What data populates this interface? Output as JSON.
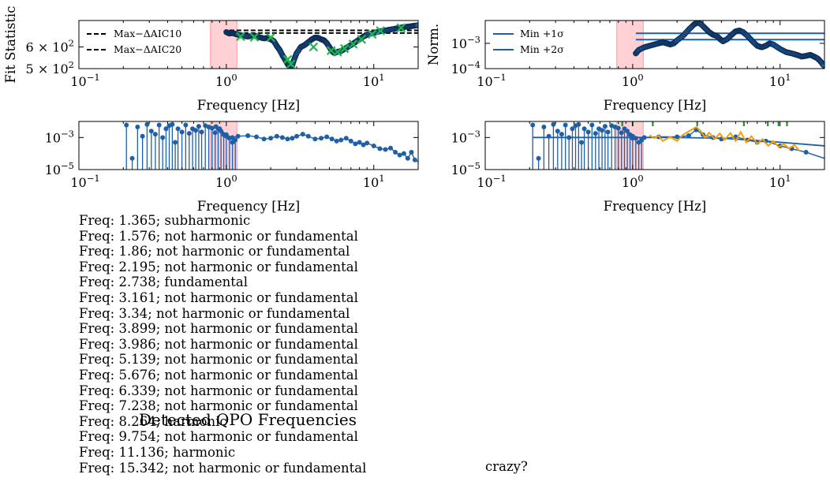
{
  "colors": {
    "points": "#1f5fa6",
    "points_edge": "#0f2d55",
    "green": "#1db84a",
    "orange": "#f5a000",
    "span": "#ff9aa2",
    "tick_green": "#0a8a1a",
    "black": "#000000"
  },
  "chart_data": [
    {
      "id": "fit-statistic",
      "type": "scatter",
      "ylabel": "Fit Statistic",
      "xlabel": "Frequency [Hz]",
      "xscale": "log",
      "xlim": [
        0.1,
        20
      ],
      "ylim": [
        500,
        750
      ],
      "yscale": "log",
      "yticks": [
        {
          "value": 500,
          "mant": "5 × 10",
          "exp": "2"
        },
        {
          "value": 600,
          "mant": "6 × 10",
          "exp": "2"
        }
      ],
      "xticks": [
        {
          "value": 0.1,
          "mant": "10",
          "exp": "−1"
        },
        {
          "value": 1,
          "mant": "10",
          "exp": "0"
        },
        {
          "value": 10,
          "mant": "10",
          "exp": "1"
        }
      ],
      "shaded_span": [
        0.78,
        1.18
      ],
      "legend": [
        {
          "label": "Max−ΔAIC10"
        },
        {
          "label": "Max−ΔAIC20"
        }
      ],
      "hlines": [
        {
          "y": 690,
          "x0": 1.05,
          "x1": 20
        },
        {
          "y": 675,
          "x0": 1.05,
          "x1": 20
        }
      ],
      "curve": [
        [
          1.0,
          680
        ],
        [
          1.05,
          672
        ],
        [
          1.1,
          675
        ],
        [
          1.15,
          670
        ],
        [
          1.2,
          665
        ],
        [
          1.3,
          660
        ],
        [
          1.4,
          655
        ],
        [
          1.5,
          660
        ],
        [
          1.6,
          658
        ],
        [
          1.7,
          650
        ],
        [
          1.8,
          645
        ],
        [
          1.9,
          648
        ],
        [
          2.0,
          640
        ],
        [
          2.1,
          630
        ],
        [
          2.2,
          605
        ],
        [
          2.3,
          585
        ],
        [
          2.4,
          560
        ],
        [
          2.5,
          540
        ],
        [
          2.6,
          520
        ],
        [
          2.7,
          505
        ],
        [
          2.8,
          515
        ],
        [
          2.9,
          545
        ],
        [
          3.0,
          570
        ],
        [
          3.2,
          600
        ],
        [
          3.4,
          610
        ],
        [
          3.6,
          625
        ],
        [
          3.8,
          640
        ],
        [
          4.0,
          650
        ],
        [
          4.2,
          648
        ],
        [
          4.4,
          640
        ],
        [
          4.6,
          635
        ],
        [
          4.8,
          620
        ],
        [
          5.0,
          600
        ],
        [
          5.2,
          580
        ],
        [
          5.4,
          570
        ],
        [
          5.6,
          575
        ],
        [
          6.0,
          580
        ],
        [
          6.5,
          595
        ],
        [
          7.0,
          610
        ],
        [
          7.5,
          625
        ],
        [
          8.0,
          640
        ],
        [
          8.5,
          655
        ],
        [
          9.0,
          665
        ],
        [
          10,
          675
        ],
        [
          11,
          685
        ],
        [
          12,
          690
        ],
        [
          13,
          695
        ],
        [
          14,
          700
        ],
        [
          15,
          705
        ],
        [
          16,
          710
        ],
        [
          17,
          712
        ],
        [
          18,
          715
        ],
        [
          19,
          718
        ],
        [
          20,
          720
        ]
      ],
      "x_markers": [
        [
          1.25,
          655
        ],
        [
          1.55,
          652
        ],
        [
          2.0,
          650
        ],
        [
          2.6,
          540
        ],
        [
          2.74,
          520
        ],
        [
          3.9,
          600
        ],
        [
          5.14,
          582
        ],
        [
          5.68,
          575
        ],
        [
          6.34,
          592
        ],
        [
          7.24,
          615
        ],
        [
          8.26,
          640
        ],
        [
          9.75,
          668
        ],
        [
          11.1,
          688
        ],
        [
          15.3,
          705
        ]
      ]
    },
    {
      "id": "normalized",
      "type": "scatter",
      "ylabel": "Norm.",
      "xlabel": "Frequency [Hz]",
      "xscale": "log",
      "xlim": [
        0.1,
        20
      ],
      "yscale": "log",
      "ylim": [
        0.0001,
        0.008
      ],
      "yticks": [
        {
          "value": 0.0001,
          "mant": "10",
          "exp": "−4"
        },
        {
          "value": 0.001,
          "mant": "10",
          "exp": "−3"
        }
      ],
      "xticks": [
        {
          "value": 0.1,
          "mant": "10",
          "exp": "−1"
        },
        {
          "value": 1,
          "mant": "10",
          "exp": "0"
        },
        {
          "value": 10,
          "mant": "10",
          "exp": "1"
        }
      ],
      "shaded_span": [
        0.78,
        1.18
      ],
      "legend": [
        {
          "label": "Min +1σ"
        },
        {
          "label": "Min +2σ"
        }
      ],
      "hlines": [
        {
          "y": 0.0025,
          "x0": 1.05,
          "x1": 20
        },
        {
          "y": 0.0014,
          "x0": 1.05,
          "x1": 20
        }
      ],
      "curve": [
        [
          1.05,
          0.0004
        ],
        [
          1.1,
          0.00055
        ],
        [
          1.2,
          0.0007
        ],
        [
          1.3,
          0.0008
        ],
        [
          1.4,
          0.0009
        ],
        [
          1.5,
          0.001
        ],
        [
          1.6,
          0.0011
        ],
        [
          1.7,
          0.001
        ],
        [
          1.8,
          0.0009
        ],
        [
          1.9,
          0.001
        ],
        [
          2.0,
          0.0013
        ],
        [
          2.2,
          0.002
        ],
        [
          2.4,
          0.0035
        ],
        [
          2.6,
          0.0055
        ],
        [
          2.75,
          0.0068
        ],
        [
          2.9,
          0.0058
        ],
        [
          3.1,
          0.004
        ],
        [
          3.3,
          0.0028
        ],
        [
          3.5,
          0.0022
        ],
        [
          3.7,
          0.002
        ],
        [
          3.9,
          0.0015
        ],
        [
          4.1,
          0.0012
        ],
        [
          4.4,
          0.0015
        ],
        [
          4.7,
          0.0022
        ],
        [
          5.0,
          0.003
        ],
        [
          5.3,
          0.0032
        ],
        [
          5.6,
          0.0028
        ],
        [
          6.0,
          0.002
        ],
        [
          6.5,
          0.0012
        ],
        [
          7.0,
          0.0008
        ],
        [
          7.5,
          0.0007
        ],
        [
          8.0,
          0.0008
        ],
        [
          8.5,
          0.001
        ],
        [
          9.0,
          0.0009
        ],
        [
          10,
          0.0006
        ],
        [
          11,
          0.00045
        ],
        [
          12,
          0.0004
        ],
        [
          13,
          0.00035
        ],
        [
          14,
          0.0003
        ],
        [
          15,
          0.00032
        ],
        [
          16,
          0.00035
        ],
        [
          17,
          0.0003
        ],
        [
          18,
          0.00025
        ],
        [
          19,
          0.00018
        ],
        [
          20,
          0.00012
        ]
      ]
    },
    {
      "id": "power-left",
      "type": "line",
      "xlabel": "Frequency [Hz]",
      "xscale": "log",
      "xlim": [
        0.1,
        20
      ],
      "yscale": "log",
      "ylim": [
        1e-05,
        0.01
      ],
      "yticks": [
        {
          "value": 1e-05,
          "mant": "10",
          "exp": "−5"
        },
        {
          "value": 0.001,
          "mant": "10",
          "exp": "−3"
        }
      ],
      "xticks": [
        {
          "value": 0.1,
          "mant": "10",
          "exp": "−1"
        },
        {
          "value": 1,
          "mant": "10",
          "exp": "0"
        },
        {
          "value": 10,
          "mant": "10",
          "exp": "1"
        }
      ],
      "shaded_span": [
        0.78,
        1.18
      ],
      "stems": [
        [
          0.21,
          0.006
        ],
        [
          0.23,
          5e-05
        ],
        [
          0.25,
          0.0045
        ],
        [
          0.27,
          0.0012
        ],
        [
          0.29,
          0.0065
        ],
        [
          0.31,
          0.0025
        ],
        [
          0.33,
          0.0016
        ],
        [
          0.35,
          0.006
        ],
        [
          0.37,
          0.001
        ],
        [
          0.39,
          0.0035
        ],
        [
          0.41,
          0.0055
        ],
        [
          0.43,
          0.0065
        ],
        [
          0.45,
          0.0005
        ],
        [
          0.47,
          0.0035
        ],
        [
          0.5,
          0.0022
        ],
        [
          0.53,
          0.006
        ],
        [
          0.56,
          0.0018
        ],
        [
          0.59,
          0.0035
        ],
        [
          0.62,
          0.0028
        ],
        [
          0.65,
          0.005
        ],
        [
          0.68,
          0.0022
        ],
        [
          0.72,
          0.0055
        ],
        [
          0.76,
          0.0045
        ],
        [
          0.8,
          0.0038
        ],
        [
          0.84,
          0.002
        ],
        [
          0.88,
          0.0035
        ],
        [
          0.92,
          0.0025
        ],
        [
          0.96,
          0.0015
        ],
        [
          1.0,
          0.0012
        ],
        [
          1.05,
          0.0009
        ],
        [
          1.1,
          0.0005
        ],
        [
          1.15,
          0.0007
        ]
      ],
      "curve": [
        [
          0.85,
          0.0048
        ],
        [
          0.9,
          0.0035
        ],
        [
          1.0,
          0.0015
        ],
        [
          1.1,
          0.001
        ],
        [
          1.2,
          0.0012
        ],
        [
          1.4,
          0.0013
        ],
        [
          1.6,
          0.0011
        ],
        [
          1.8,
          0.0008
        ],
        [
          2.0,
          0.0009
        ],
        [
          2.2,
          0.0012
        ],
        [
          2.4,
          0.001
        ],
        [
          2.6,
          0.0008
        ],
        [
          2.8,
          0.0009
        ],
        [
          3.0,
          0.0012
        ],
        [
          3.3,
          0.0016
        ],
        [
          3.6,
          0.0012
        ],
        [
          4.0,
          0.0008
        ],
        [
          4.4,
          0.0009
        ],
        [
          4.8,
          0.0011
        ],
        [
          5.2,
          0.0008
        ],
        [
          5.6,
          0.0006
        ],
        [
          6.0,
          0.0007
        ],
        [
          6.5,
          0.0009
        ],
        [
          7.0,
          0.0006
        ],
        [
          7.5,
          0.0004
        ],
        [
          8.0,
          0.0005
        ],
        [
          8.5,
          0.00035
        ],
        [
          9.0,
          0.00045
        ],
        [
          10,
          0.0003
        ],
        [
          11,
          0.0002
        ],
        [
          12,
          0.00018
        ],
        [
          13,
          0.00022
        ],
        [
          14,
          0.00012
        ],
        [
          15,
          8e-05
        ],
        [
          16,
          0.0001
        ],
        [
          17,
          5e-05
        ],
        [
          18,
          0.00012
        ],
        [
          19,
          4e-05
        ],
        [
          20,
          3e-05
        ]
      ]
    },
    {
      "id": "power-right",
      "type": "line",
      "xlabel": "Frequency [Hz]",
      "xscale": "log",
      "xlim": [
        0.1,
        20
      ],
      "yscale": "log",
      "ylim": [
        1e-05,
        0.01
      ],
      "yticks": [
        {
          "value": 1e-05,
          "mant": "10",
          "exp": "−5"
        },
        {
          "value": 0.001,
          "mant": "10",
          "exp": "−3"
        }
      ],
      "xticks": [
        {
          "value": 0.1,
          "mant": "10",
          "exp": "−1"
        },
        {
          "value": 1,
          "mant": "10",
          "exp": "0"
        },
        {
          "value": 10,
          "mant": "10",
          "exp": "1"
        }
      ],
      "shaded_span": [
        0.78,
        1.18
      ],
      "stems": [
        [
          0.21,
          0.006
        ],
        [
          0.23,
          5e-05
        ],
        [
          0.25,
          0.0045
        ],
        [
          0.27,
          0.0012
        ],
        [
          0.29,
          0.0065
        ],
        [
          0.31,
          0.0025
        ],
        [
          0.33,
          0.0016
        ],
        [
          0.35,
          0.006
        ],
        [
          0.37,
          0.001
        ],
        [
          0.39,
          0.0035
        ],
        [
          0.41,
          0.0055
        ],
        [
          0.43,
          0.0065
        ],
        [
          0.45,
          0.0005
        ],
        [
          0.47,
          0.0035
        ],
        [
          0.5,
          0.0022
        ],
        [
          0.53,
          0.006
        ],
        [
          0.56,
          0.0018
        ],
        [
          0.59,
          0.0035
        ],
        [
          0.62,
          0.0028
        ],
        [
          0.65,
          0.005
        ],
        [
          0.68,
          0.0022
        ],
        [
          0.72,
          0.0055
        ],
        [
          0.76,
          0.0045
        ],
        [
          0.8,
          0.0038
        ],
        [
          0.84,
          0.002
        ],
        [
          0.88,
          0.0035
        ],
        [
          0.92,
          0.0025
        ],
        [
          0.96,
          0.0015
        ],
        [
          1.0,
          0.0012
        ],
        [
          1.05,
          0.0009
        ],
        [
          1.1,
          0.0005
        ],
        [
          1.15,
          0.0007
        ]
      ],
      "baseline": [
        [
          0.21,
          0.001
        ],
        [
          1.0,
          0.001
        ],
        [
          2.0,
          0.001
        ],
        [
          4.0,
          0.0009
        ],
        [
          8.0,
          0.0006
        ],
        [
          20,
          0.0003
        ]
      ],
      "curve": [
        [
          1.0,
          0.0009
        ],
        [
          1.2,
          0.001
        ],
        [
          1.5,
          0.0011
        ],
        [
          2.0,
          0.0011
        ],
        [
          2.4,
          0.0013
        ],
        [
          2.7,
          0.003
        ],
        [
          3.0,
          0.0015
        ],
        [
          3.5,
          0.001
        ],
        [
          4.0,
          0.0008
        ],
        [
          5.0,
          0.0011
        ],
        [
          6.0,
          0.0007
        ],
        [
          7.0,
          0.0005
        ],
        [
          8.0,
          0.0006
        ],
        [
          10,
          0.0003
        ],
        [
          12,
          0.0002
        ],
        [
          15,
          0.00012
        ],
        [
          20,
          5e-05
        ]
      ],
      "orange": [
        [
          1.3,
          0.0014
        ],
        [
          1.4,
          0.0009
        ],
        [
          1.5,
          0.0013
        ],
        [
          1.6,
          0.0006
        ],
        [
          1.8,
          0.0011
        ],
        [
          2.0,
          0.0006
        ],
        [
          2.2,
          0.0015
        ],
        [
          2.5,
          0.003
        ],
        [
          2.7,
          0.0045
        ],
        [
          2.9,
          0.0025
        ],
        [
          3.1,
          0.001
        ],
        [
          3.3,
          0.002
        ],
        [
          3.6,
          0.0008
        ],
        [
          3.9,
          0.0018
        ],
        [
          4.2,
          0.0007
        ],
        [
          4.6,
          0.0019
        ],
        [
          5.0,
          0.0006
        ],
        [
          5.4,
          0.0022
        ],
        [
          5.9,
          0.0005
        ],
        [
          6.4,
          0.0012
        ],
        [
          7.0,
          0.0004
        ],
        [
          7.6,
          0.0008
        ],
        [
          8.3,
          0.0003
        ],
        [
          9.0,
          0.0006
        ],
        [
          9.8,
          0.00025
        ],
        [
          10.6,
          0.0004
        ],
        [
          11.5,
          0.0002
        ],
        [
          12.5,
          0.00035
        ],
        [
          13.5,
          0.00015
        ]
      ],
      "green_ticks": [
        0.85,
        1.0,
        1.37,
        2.74,
        5.68,
        8.26,
        9.75,
        11.14
      ]
    }
  ],
  "qpo": {
    "title": "Detected QPO Frequencies",
    "items": [
      "Freq: 1.365; subharmonic",
      "Freq: 1.576; not harmonic or fundamental",
      "Freq: 1.86; not harmonic or fundamental",
      "Freq: 2.195; not harmonic or fundamental",
      "Freq: 2.738; fundamental",
      "Freq: 3.161; not harmonic or fundamental",
      "Freq: 3.34; not harmonic or fundamental",
      "Freq: 3.899; not harmonic or fundamental",
      "Freq: 3.986; not harmonic or fundamental",
      "Freq: 5.139; not harmonic or fundamental",
      "Freq: 5.676; not harmonic or fundamental",
      "Freq: 6.339; not harmonic or fundamental",
      "Freq: 7.238; not harmonic or fundamental",
      "Freq: 8.264; harmonic",
      "Freq: 9.754; not harmonic or fundamental",
      "Freq: 11.136; harmonic",
      "Freq: 15.342; not harmonic or fundamental"
    ],
    "note": "crazy?"
  }
}
